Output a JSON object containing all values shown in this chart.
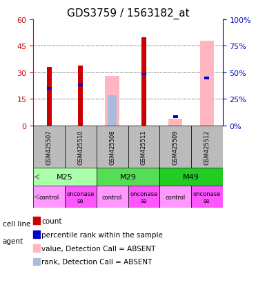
{
  "title": "GDS3759 / 1563182_at",
  "samples": [
    "GSM425507",
    "GSM425510",
    "GSM425508",
    "GSM425511",
    "GSM425509",
    "GSM425512"
  ],
  "cell_lines": [
    {
      "label": "M25",
      "color": "#AAFFAA",
      "span": [
        0,
        2
      ]
    },
    {
      "label": "M29",
      "color": "#55DD55",
      "span": [
        2,
        4
      ]
    },
    {
      "label": "M49",
      "color": "#22CC22",
      "span": [
        4,
        6
      ]
    }
  ],
  "agents": [
    "control",
    "onconase\nse",
    "control",
    "onconase\nse",
    "control",
    "onconase\nse"
  ],
  "agent_colors": [
    "#FF99FF",
    "#FF55FF",
    "#FF99FF",
    "#FF55FF",
    "#FF99FF",
    "#FF55FF"
  ],
  "count_values": [
    33.0,
    34.0,
    null,
    50.0,
    null,
    null
  ],
  "blue_rank_values": [
    21.0,
    23.0,
    null,
    29.0,
    null,
    null
  ],
  "absent_value_heights": [
    null,
    null,
    28.0,
    null,
    4.0,
    48.0
  ],
  "absent_rank_heights": [
    null,
    null,
    17.0,
    null,
    null,
    null
  ],
  "absent_blue_rank": [
    null,
    null,
    null,
    null,
    5.0,
    27.0
  ],
  "left_ylim": [
    0,
    60
  ],
  "right_ylim": [
    0,
    100
  ],
  "left_yticks": [
    0,
    15,
    30,
    45,
    60
  ],
  "right_yticks": [
    0,
    25,
    50,
    75,
    100
  ],
  "count_color": "#CC0000",
  "rank_color": "#0000CC",
  "absent_value_color": "#FFB6C1",
  "absent_rank_color": "#AABBDD",
  "sample_bg_color": "#BBBBBB",
  "title_fontsize": 11,
  "tick_fontsize": 8,
  "legend_fontsize": 8
}
